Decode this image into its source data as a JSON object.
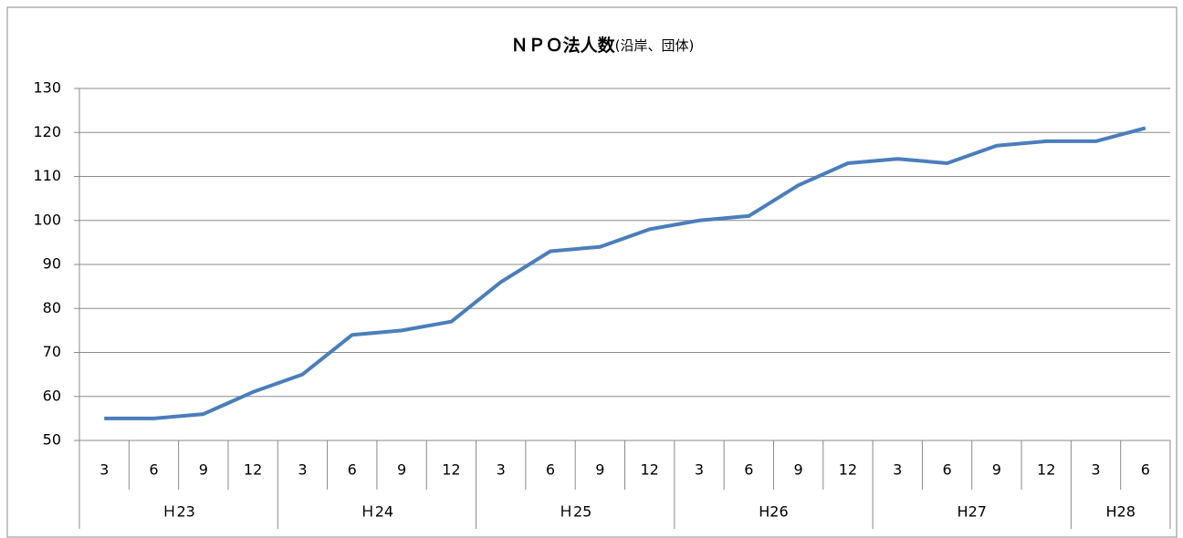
{
  "chart_data": {
    "type": "line",
    "title": "ＮＰＯ法人数",
    "subtitle": "(沿岸、団体)",
    "groups": [
      {
        "name": "Ｈ23",
        "categories": [
          "3",
          "6",
          "9",
          "12"
        ]
      },
      {
        "name": "Ｈ24",
        "categories": [
          "3",
          "6",
          "9",
          "12"
        ]
      },
      {
        "name": "Ｈ25",
        "categories": [
          "3",
          "6",
          "9",
          "12"
        ]
      },
      {
        "name": "H26",
        "categories": [
          "3",
          "6",
          "9",
          "12"
        ]
      },
      {
        "name": "H27",
        "categories": [
          "3",
          "6",
          "9",
          "12"
        ]
      },
      {
        "name": "H28",
        "categories": [
          "3",
          "6"
        ]
      }
    ],
    "values": [
      55,
      55,
      56,
      61,
      65,
      74,
      75,
      77,
      86,
      93,
      94,
      98,
      100,
      101,
      108,
      113,
      114,
      113,
      117,
      118,
      118,
      121
    ],
    "color": "#4a7ebb",
    "ylim": [
      50,
      130
    ],
    "yticks": [
      50,
      60,
      70,
      80,
      90,
      100,
      110,
      120,
      130
    ],
    "grid": true
  }
}
